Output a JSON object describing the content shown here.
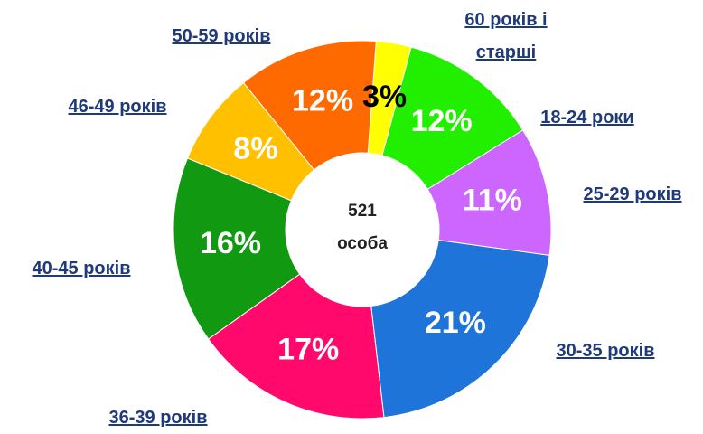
{
  "chart_data": {
    "type": "donut",
    "center_text": [
      "521",
      "особа"
    ],
    "categories": [
      "18-24 роки",
      "25-29 років",
      "30-35 років",
      "36-39 років",
      "40-45 років",
      "46-49 років",
      "50-59 років",
      "60 років і старші"
    ],
    "values": [
      12,
      11,
      21,
      17,
      16,
      8,
      12,
      3
    ],
    "value_labels": [
      "12%",
      "11%",
      "21%",
      "17%",
      "16%",
      "8%",
      "12%",
      "3%"
    ],
    "colors": [
      "#22ee00",
      "#cc66ff",
      "#1e74d8",
      "#ff0a6c",
      "#119a11",
      "#ffc000",
      "#ff6a00",
      "#ffff00"
    ],
    "value_label_colors": [
      "#ffffff",
      "#ffffff",
      "#ffffff",
      "#ffffff",
      "#ffffff",
      "#ffffff",
      "#ffffff",
      "#000000"
    ]
  }
}
